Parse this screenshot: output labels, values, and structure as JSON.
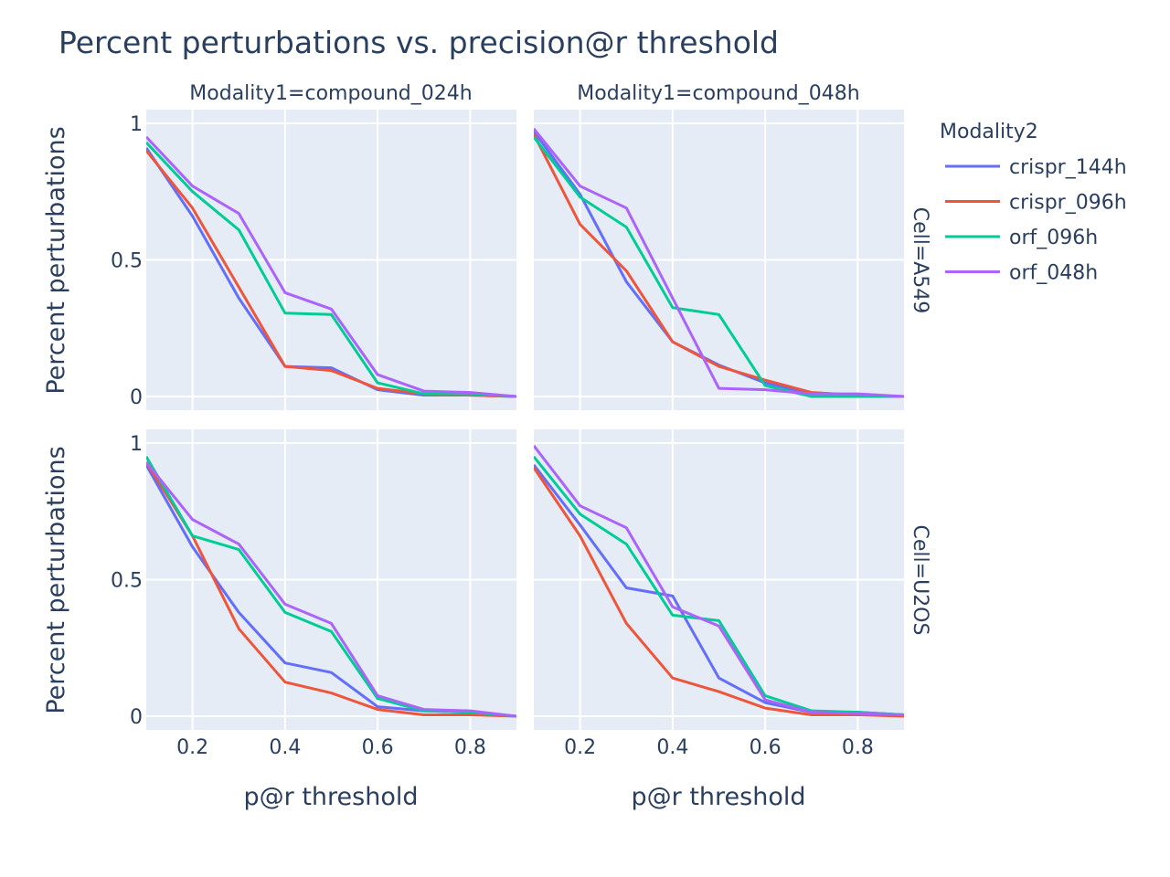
{
  "chart_data": {
    "type": "line",
    "title": "Percent perturbations vs. precision@r threshold",
    "xlabel": "p@r threshold",
    "ylabel": "Percent perturbations",
    "xlim": [
      0.1,
      0.9
    ],
    "ylim": [
      -0.05,
      1.05
    ],
    "x_ticks": [
      0.2,
      0.4,
      0.6,
      0.8
    ],
    "x_tick_labels": [
      "0.2",
      "0.4",
      "0.6",
      "0.8"
    ],
    "y_ticks": [
      0,
      0.5,
      1
    ],
    "y_tick_labels": [
      "0",
      "0.5",
      "1"
    ],
    "grid": true,
    "legend": {
      "title": "Modality2",
      "placement": "right",
      "entries": [
        {
          "name": "crispr_144h",
          "color": "#636efa"
        },
        {
          "name": "crispr_096h",
          "color": "#ef553b"
        },
        {
          "name": "orf_096h",
          "color": "#00cc96"
        },
        {
          "name": "orf_048h",
          "color": "#ab63fa"
        }
      ]
    },
    "x": [
      0.1,
      0.2,
      0.3,
      0.4,
      0.5,
      0.6,
      0.7,
      0.8,
      0.9
    ],
    "columns": [
      "Modality1=compound_024h",
      "Modality1=compound_048h"
    ],
    "rows": [
      "Cell=A549",
      "Cell=U2OS"
    ],
    "panels": [
      {
        "row": 0,
        "col": 0,
        "series": [
          {
            "name": "crispr_144h",
            "values": [
              0.91,
              0.66,
              0.36,
              0.11,
              0.105,
              0.025,
              0.005,
              0.005,
              0.0
            ]
          },
          {
            "name": "crispr_096h",
            "values": [
              0.9,
              0.69,
              0.4,
              0.11,
              0.095,
              0.03,
              0.01,
              0.005,
              0.0
            ]
          },
          {
            "name": "orf_096h",
            "values": [
              0.93,
              0.75,
              0.61,
              0.305,
              0.3,
              0.05,
              0.01,
              0.01,
              0.0
            ]
          },
          {
            "name": "orf_048h",
            "values": [
              0.95,
              0.77,
              0.67,
              0.38,
              0.32,
              0.08,
              0.02,
              0.015,
              0.0
            ]
          }
        ]
      },
      {
        "row": 0,
        "col": 1,
        "series": [
          {
            "name": "crispr_144h",
            "values": [
              0.97,
              0.74,
              0.42,
              0.2,
              0.115,
              0.05,
              0.01,
              0.005,
              0.0
            ]
          },
          {
            "name": "crispr_096h",
            "values": [
              0.96,
              0.63,
              0.46,
              0.2,
              0.11,
              0.06,
              0.015,
              0.005,
              0.0
            ]
          },
          {
            "name": "orf_096h",
            "values": [
              0.95,
              0.73,
              0.62,
              0.325,
              0.3,
              0.04,
              0.0,
              0.0,
              0.0
            ]
          },
          {
            "name": "orf_048h",
            "values": [
              0.98,
              0.77,
              0.69,
              0.36,
              0.03,
              0.025,
              0.01,
              0.01,
              0.0
            ]
          }
        ]
      },
      {
        "row": 1,
        "col": 0,
        "series": [
          {
            "name": "crispr_144h",
            "values": [
              0.92,
              0.62,
              0.38,
              0.195,
              0.16,
              0.035,
              0.02,
              0.015,
              0.0
            ]
          },
          {
            "name": "crispr_096h",
            "values": [
              0.93,
              0.66,
              0.32,
              0.125,
              0.085,
              0.025,
              0.005,
              0.005,
              0.0
            ]
          },
          {
            "name": "orf_096h",
            "values": [
              0.95,
              0.66,
              0.61,
              0.38,
              0.31,
              0.065,
              0.02,
              0.015,
              0.0
            ]
          },
          {
            "name": "orf_048h",
            "values": [
              0.93,
              0.72,
              0.63,
              0.41,
              0.34,
              0.075,
              0.025,
              0.02,
              0.0
            ]
          }
        ]
      },
      {
        "row": 1,
        "col": 1,
        "series": [
          {
            "name": "crispr_144h",
            "values": [
              0.92,
              0.7,
              0.47,
              0.44,
              0.14,
              0.05,
              0.015,
              0.015,
              0.005
            ]
          },
          {
            "name": "crispr_096h",
            "values": [
              0.91,
              0.66,
              0.34,
              0.14,
              0.09,
              0.03,
              0.005,
              0.005,
              0.0
            ]
          },
          {
            "name": "orf_096h",
            "values": [
              0.95,
              0.74,
              0.63,
              0.37,
              0.35,
              0.075,
              0.02,
              0.015,
              0.005
            ]
          },
          {
            "name": "orf_048h",
            "values": [
              0.99,
              0.77,
              0.69,
              0.4,
              0.33,
              0.06,
              0.015,
              0.01,
              0.005
            ]
          }
        ]
      }
    ]
  }
}
